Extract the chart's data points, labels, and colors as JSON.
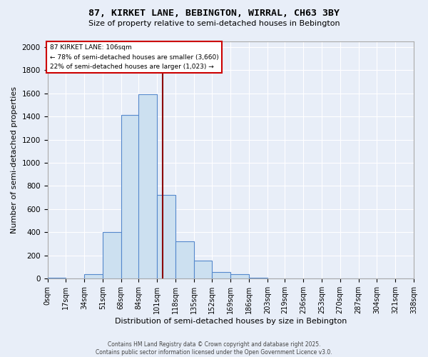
{
  "title1": "87, KIRKET LANE, BEBINGTON, WIRRAL, CH63 3BY",
  "title2": "Size of property relative to semi-detached houses in Bebington",
  "xlabel": "Distribution of semi-detached houses by size in Bebington",
  "ylabel": "Number of semi-detached properties",
  "bin_labels": [
    "0sqm",
    "17sqm",
    "34sqm",
    "51sqm",
    "68sqm",
    "84sqm",
    "101sqm",
    "118sqm",
    "135sqm",
    "152sqm",
    "169sqm",
    "186sqm",
    "203sqm",
    "219sqm",
    "236sqm",
    "253sqm",
    "270sqm",
    "287sqm",
    "304sqm",
    "321sqm",
    "338sqm"
  ],
  "bin_edges": [
    0,
    17,
    34,
    51,
    68,
    84,
    101,
    118,
    135,
    152,
    169,
    186,
    203,
    219,
    236,
    253,
    270,
    287,
    304,
    321,
    338
  ],
  "bar_heights": [
    10,
    0,
    40,
    405,
    1415,
    1590,
    725,
    325,
    155,
    55,
    38,
    10,
    0,
    0,
    0,
    0,
    0,
    0,
    0,
    0
  ],
  "bar_color": "#cce0f0",
  "bar_edge_color": "#5588cc",
  "property_value": 106,
  "property_line_color": "#8b0000",
  "annotation_text": "87 KIRKET LANE: 106sqm\n← 78% of semi-detached houses are smaller (3,660)\n22% of semi-detached houses are larger (1,023) →",
  "annotation_box_color": "#ffffff",
  "annotation_box_edge_color": "#cc0000",
  "ylim": [
    0,
    2050
  ],
  "yticks": [
    0,
    200,
    400,
    600,
    800,
    1000,
    1200,
    1400,
    1600,
    1800,
    2000
  ],
  "background_color": "#e8eef8",
  "footer_line1": "Contains HM Land Registry data © Crown copyright and database right 2025.",
  "footer_line2": "Contains public sector information licensed under the Open Government Licence v3.0."
}
